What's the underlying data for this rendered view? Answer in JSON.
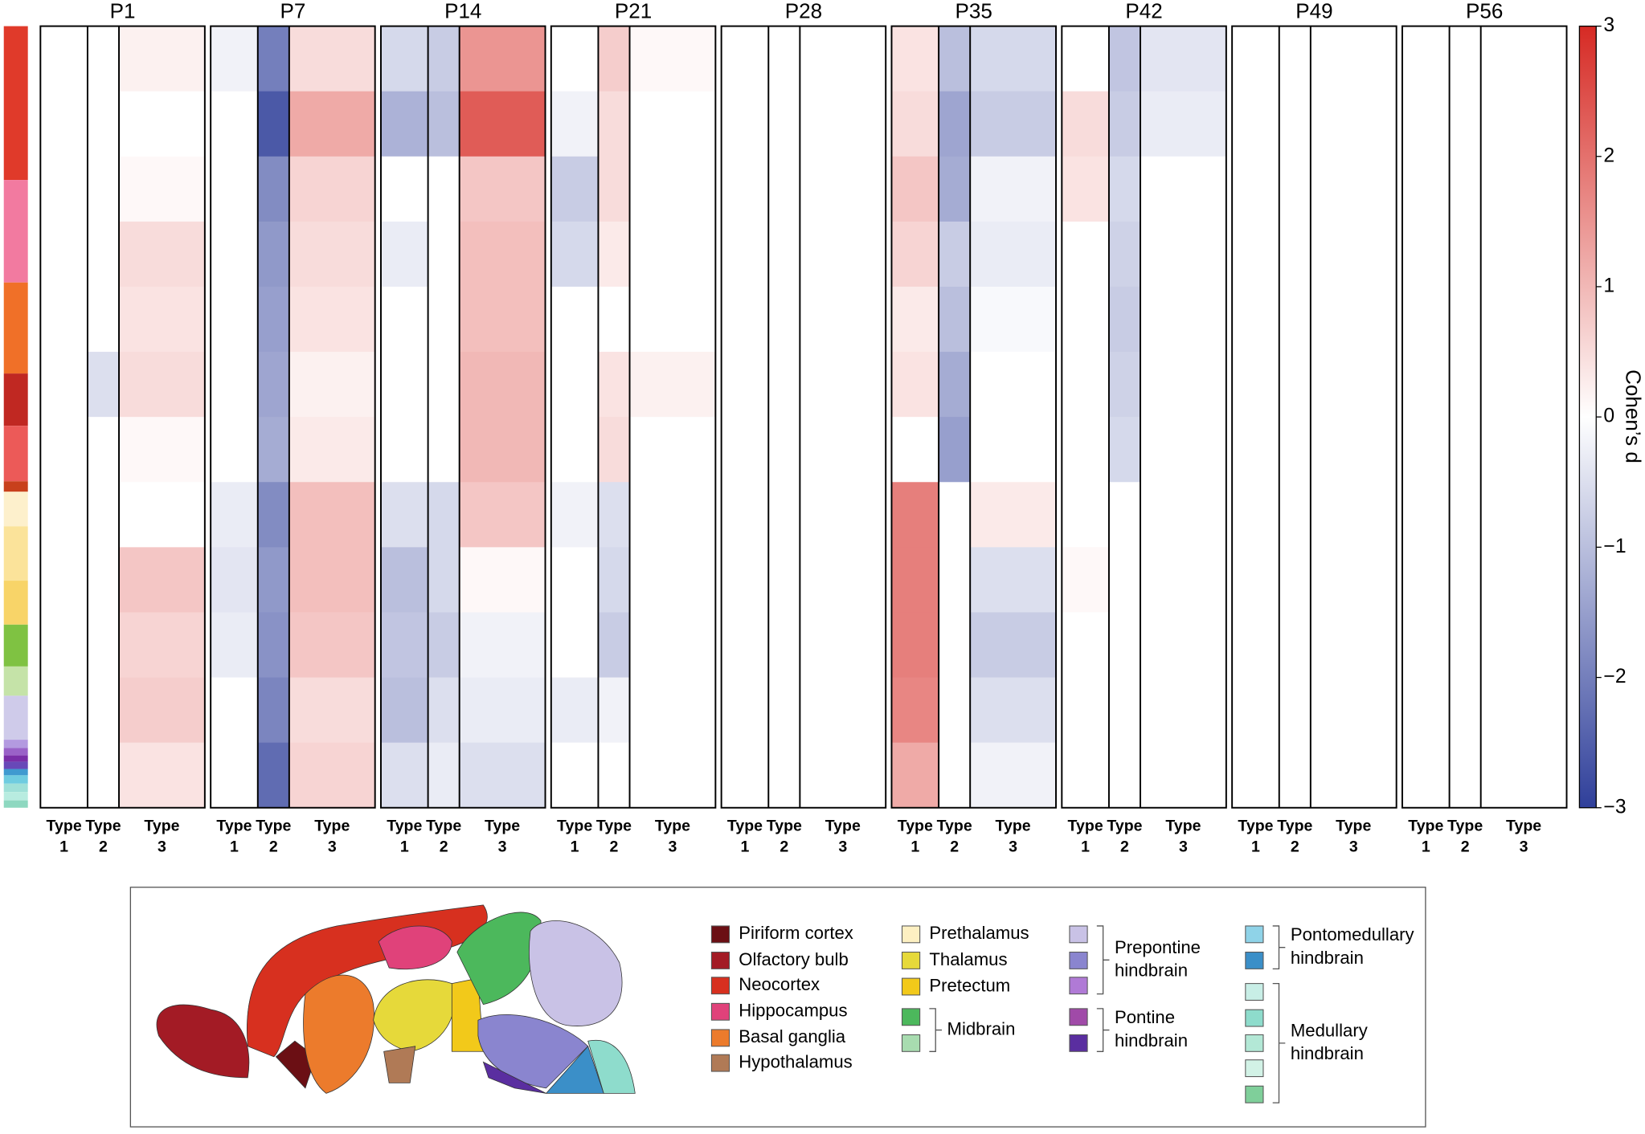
{
  "chart_data": {
    "type": "heatmap",
    "column_labels": [
      [
        "Type",
        "1"
      ],
      [
        "Type",
        "2"
      ],
      [
        "Type",
        "3"
      ]
    ],
    "clim": [
      -3,
      3
    ],
    "cticks": [
      3,
      2,
      1,
      0,
      {
        "value": -1,
        "label": "−1"
      },
      {
        "value": -2,
        "label": "−2"
      },
      {
        "value": -3,
        "label": "−3"
      }
    ],
    "colorbar_label": "Cohen’s d",
    "colors": {
      "min": "#2f3f9a",
      "mid": "#ffffff",
      "max": "#d62a24"
    },
    "strip": [
      {
        "color": "#e03a2a",
        "n": 147
      },
      {
        "color": "#f27aa0",
        "n": 98
      },
      {
        "color": "#f07028",
        "n": 87
      },
      {
        "color": "#c02822",
        "n": 50
      },
      {
        "color": "#ec5a58",
        "n": 53
      },
      {
        "color": "#c8401c",
        "n": 10
      },
      {
        "color": "#fdf0cc",
        "n": 33
      },
      {
        "color": "#fbe39a",
        "n": 52
      },
      {
        "color": "#f8d468",
        "n": 42
      },
      {
        "color": "#7fc242",
        "n": 40
      },
      {
        "color": "#c5e3a8",
        "n": 28
      },
      {
        "color": "#cfcbea",
        "n": 42
      },
      {
        "color": "#b39ae0",
        "n": 8
      },
      {
        "color": "#9a62c8",
        "n": 7
      },
      {
        "color": "#7a2fa8",
        "n": 6
      },
      {
        "color": "#6848b8",
        "n": 7
      },
      {
        "color": "#3f9ad0",
        "n": 6
      },
      {
        "color": "#6fcce0",
        "n": 8
      },
      {
        "color": "#9fe0d8",
        "n": 8
      },
      {
        "color": "#b8ece0",
        "n": 8
      },
      {
        "color": "#8ed8c0",
        "n": 7
      }
    ],
    "panels": [
      {
        "name": "P1",
        "columns": [
          [
            0,
            0,
            0,
            0,
            0,
            0,
            0,
            0,
            0,
            0,
            0,
            0
          ],
          [
            0,
            0,
            0,
            0,
            0,
            -0.5,
            0,
            0,
            0,
            0,
            0,
            0
          ],
          [
            0.2,
            0,
            0.1,
            0.5,
            0.4,
            0.5,
            0.1,
            0,
            0.8,
            0.6,
            0.7,
            0.4
          ]
        ]
      },
      {
        "name": "P7",
        "columns": [
          [
            -0.2,
            0,
            0,
            0,
            0,
            0,
            0,
            -0.3,
            -0.4,
            -0.3,
            0,
            0
          ],
          [
            -2.0,
            -2.6,
            -1.8,
            -1.6,
            -1.5,
            -1.4,
            -1.3,
            -1.8,
            -1.6,
            -1.7,
            -1.9,
            -2.3
          ],
          [
            0.5,
            1.2,
            0.6,
            0.5,
            0.4,
            0.2,
            0.3,
            0.9,
            0.9,
            0.8,
            0.5,
            0.6
          ]
        ]
      },
      {
        "name": "P14",
        "columns": [
          [
            -0.6,
            -1.2,
            0,
            -0.3,
            0,
            0,
            0,
            -0.5,
            -1.0,
            -0.9,
            -1.0,
            -0.5
          ],
          [
            -0.8,
            -1.0,
            0,
            0,
            0,
            0,
            0,
            -0.6,
            -0.6,
            -0.8,
            -0.5,
            -0.3
          ],
          [
            1.5,
            2.3,
            0.8,
            0.9,
            0.9,
            1.0,
            1.0,
            0.8,
            0.1,
            -0.2,
            -0.3,
            -0.5
          ]
        ]
      },
      {
        "name": "P21",
        "columns": [
          [
            0,
            -0.2,
            -0.8,
            -0.6,
            0,
            0,
            0,
            -0.2,
            0,
            0,
            -0.3,
            0
          ],
          [
            0.7,
            0.5,
            0.5,
            0.3,
            0,
            0.4,
            0.5,
            -0.5,
            -0.6,
            -0.8,
            -0.2,
            0
          ],
          [
            0.1,
            0,
            0,
            0,
            0,
            0.2,
            0,
            0,
            0,
            0,
            0,
            0
          ]
        ]
      },
      {
        "name": "P28",
        "columns": [
          [
            0,
            0,
            0,
            0,
            0,
            0,
            0,
            0,
            0,
            0,
            0,
            0
          ],
          [
            0,
            0,
            0,
            0,
            0,
            0,
            0,
            0,
            0,
            0,
            0,
            0
          ],
          [
            0,
            0,
            0,
            0,
            0,
            0,
            0,
            0,
            0,
            0,
            0,
            0
          ]
        ]
      },
      {
        "name": "P35",
        "columns": [
          [
            0.4,
            0.5,
            0.8,
            0.6,
            0.3,
            0.4,
            0,
            1.8,
            1.8,
            1.8,
            1.7,
            1.2
          ],
          [
            -1.0,
            -1.4,
            -1.3,
            -0.8,
            -1.0,
            -1.3,
            -1.5,
            0,
            0,
            0,
            0,
            0
          ],
          [
            -0.6,
            -0.8,
            -0.2,
            -0.3,
            -0.1,
            0,
            0,
            0.3,
            -0.5,
            -0.8,
            -0.5,
            -0.2
          ]
        ]
      },
      {
        "name": "P42",
        "columns": [
          [
            0,
            0.5,
            0.4,
            0,
            0,
            0,
            0,
            0,
            0.1,
            0,
            0,
            0
          ],
          [
            -0.9,
            -0.8,
            -0.6,
            -0.7,
            -0.8,
            -0.7,
            -0.6,
            0,
            0,
            0,
            0,
            0
          ],
          [
            -0.4,
            -0.3,
            0,
            0,
            0,
            0,
            0,
            0,
            0,
            0,
            0,
            0
          ]
        ]
      },
      {
        "name": "P49",
        "columns": [
          [
            0,
            0,
            0,
            0,
            0,
            0,
            0,
            0,
            0,
            0,
            0,
            0
          ],
          [
            0,
            0,
            0,
            0,
            0,
            0,
            0,
            0,
            0,
            0,
            0,
            0
          ],
          [
            0,
            0,
            0,
            0,
            0,
            0,
            0,
            0,
            0,
            0,
            0,
            0
          ]
        ]
      },
      {
        "name": "P56",
        "columns": [
          [
            0,
            0,
            0,
            0,
            0,
            0,
            0,
            0,
            0,
            0,
            0,
            0
          ],
          [
            0,
            0,
            0,
            0,
            0,
            0,
            0,
            0,
            0,
            0,
            0,
            0
          ],
          [
            0,
            0,
            0,
            0,
            0,
            0,
            0,
            0,
            0,
            0,
            0,
            0
          ]
        ]
      }
    ],
    "legend": [
      {
        "label": [
          "Piriform cortex"
        ],
        "colors": [
          "#6b0f14"
        ]
      },
      {
        "label": [
          "Olfactory bulb"
        ],
        "colors": [
          "#a31b25"
        ]
      },
      {
        "label": [
          "Neocortex"
        ],
        "colors": [
          "#d7301f"
        ]
      },
      {
        "label": [
          "Hippocampus"
        ],
        "colors": [
          "#e0427a"
        ]
      },
      {
        "label": [
          "Basal ganglia"
        ],
        "colors": [
          "#ec7b2c"
        ]
      },
      {
        "label": [
          "Hypothalamus"
        ],
        "colors": [
          "#b07a56"
        ]
      },
      {
        "label": [
          "Prethalamus"
        ],
        "colors": [
          "#fdf0c2"
        ]
      },
      {
        "label": [
          "Thalamus"
        ],
        "colors": [
          "#e6d93a"
        ]
      },
      {
        "label": [
          "Pretectum"
        ],
        "colors": [
          "#f2c91a"
        ]
      },
      {
        "label": [
          "Midbrain"
        ],
        "colors": [
          "#4cb85c",
          "#a8dcb0"
        ]
      },
      {
        "label": [
          "Prepontine",
          "hindbrain"
        ],
        "colors": [
          "#c9c2e6",
          "#8a85cf",
          "#b07ad6"
        ]
      },
      {
        "label": [
          "Pontine",
          "hindbrain"
        ],
        "colors": [
          "#a04aa8",
          "#5a2ea0"
        ]
      },
      {
        "label": [
          "Pontomedullary",
          "hindbrain"
        ],
        "colors": [
          "#8fd3e8",
          "#3b8fc8"
        ]
      },
      {
        "label": [
          "Medullary",
          "hindbrain"
        ],
        "colors": [
          "#c8eee6",
          "#8edccc",
          "#b3e8d6",
          "#d2f2e6",
          "#7fcf9a"
        ]
      }
    ]
  }
}
